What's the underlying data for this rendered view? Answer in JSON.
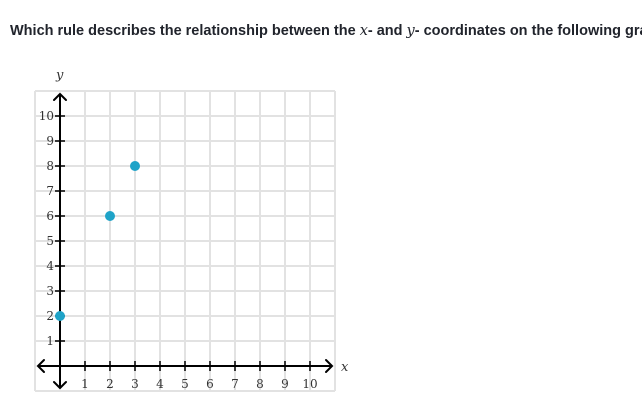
{
  "question": {
    "prefix": "Which rule describes the relationship between the ",
    "x_var": "x",
    "middle": "- and ",
    "y_var": "y",
    "suffix": "- coordinates on the following graph?"
  },
  "chart_data": {
    "type": "scatter",
    "title": "",
    "xlabel": "x",
    "ylabel": "y",
    "xlim": [
      -1,
      11
    ],
    "ylim": [
      -1,
      11
    ],
    "grid": true,
    "x_ticks": [
      "1",
      "2",
      "3",
      "4",
      "5",
      "6",
      "7",
      "8",
      "9",
      "10"
    ],
    "y_ticks": [
      "1",
      "2",
      "3",
      "4",
      "5",
      "6",
      "7",
      "8",
      "9",
      "10"
    ],
    "points": [
      {
        "x": 0,
        "y": 2
      },
      {
        "x": 2,
        "y": 6
      },
      {
        "x": 3,
        "y": 8
      }
    ],
    "point_color": "#1fa3c8",
    "grid_color": "#e2e2e2",
    "axis_color": "#000000"
  }
}
